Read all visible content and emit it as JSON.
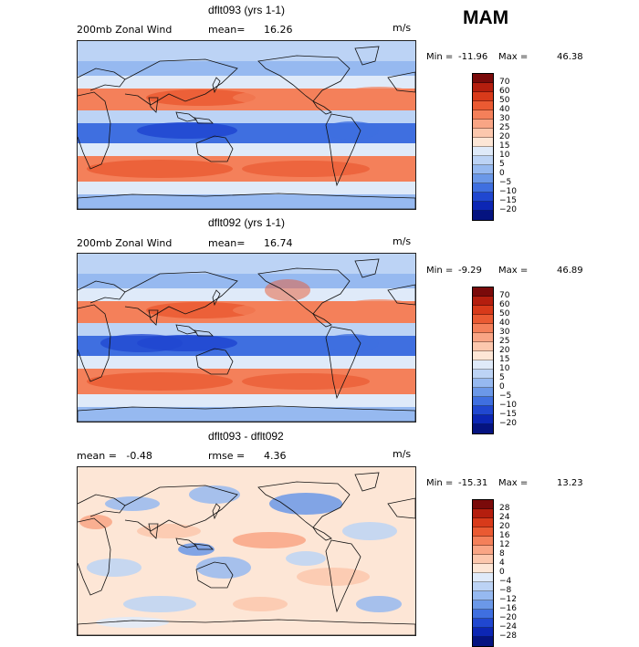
{
  "season": "MAM",
  "units": "m/s",
  "panels": [
    {
      "id": "p1",
      "title": "dflt093 (yrs 1-1)",
      "sub_left": "200mb Zonal Wind",
      "sub_mid_label": "mean=",
      "sub_mid_value": "16.26",
      "min_label": "Min =",
      "min_value": "-11.96",
      "max_label": "Max =",
      "max_value": "46.38",
      "legend_labels": [
        "70",
        "60",
        "50",
        "40",
        "30",
        "25",
        "20",
        "15",
        "10",
        "5",
        "0",
        "−5",
        "−10",
        "−15",
        "−20"
      ]
    },
    {
      "id": "p2",
      "title": "dflt092 (yrs 1-1)",
      "sub_left": "200mb Zonal Wind",
      "sub_mid_label": "mean=",
      "sub_mid_value": "16.74",
      "min_label": "Min =",
      "min_value": "-9.29",
      "max_label": "Max =",
      "max_value": "46.89",
      "legend_labels": [
        "70",
        "60",
        "50",
        "40",
        "30",
        "25",
        "20",
        "15",
        "10",
        "5",
        "0",
        "−5",
        "−10",
        "−15",
        "−20"
      ]
    },
    {
      "id": "p3",
      "title": "dflt093 - dflt092",
      "sub_left": "mean =   -0.48",
      "sub_mid_label": "rmse =",
      "sub_mid_value": "4.36",
      "min_label": "Min =",
      "min_value": "-15.31",
      "max_label": "Max =",
      "max_value": "13.23",
      "legend_labels": [
        "28",
        "24",
        "20",
        "16",
        "12",
        "8",
        "4",
        "0",
        "−4",
        "−8",
        "−12",
        "−16",
        "−20",
        "−24",
        "−28"
      ]
    }
  ],
  "colors": {
    "scale16": [
      "#7a0a0a",
      "#b41e0e",
      "#d83a1a",
      "#ea5a32",
      "#f4805a",
      "#f9a585",
      "#fcc7ad",
      "#fde6d6",
      "#dfeaf9",
      "#bcd3f5",
      "#96b9f0",
      "#6b98e8",
      "#3f6fe0",
      "#2047d0",
      "#0c26b4",
      "#051380"
    ]
  }
}
